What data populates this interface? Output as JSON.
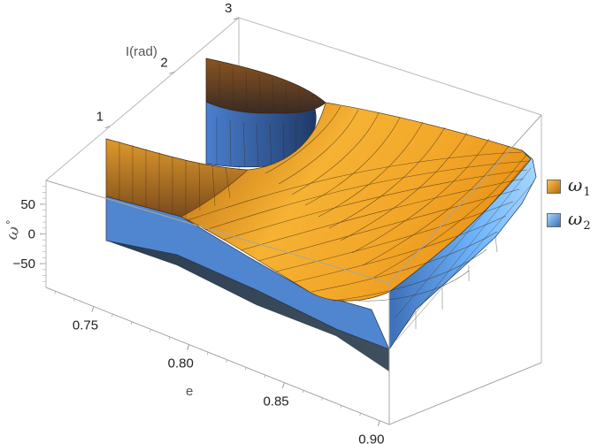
{
  "chart_data": {
    "type": "surface3d",
    "title": "",
    "axes": {
      "x": {
        "label": "e",
        "ticks": [
          "0.75",
          "0.80",
          "0.85",
          "0.90"
        ],
        "range": [
          0.725,
          0.905
        ]
      },
      "y": {
        "label": "I(rad)",
        "ticks": [
          "1",
          "2",
          "3"
        ],
        "range": [
          0,
          3
        ]
      },
      "z": {
        "label": "ω°",
        "ticks": [
          "50",
          "0",
          "−50"
        ],
        "range": [
          -90,
          90
        ]
      }
    },
    "series": [
      {
        "name": "ω₁",
        "base": "ω",
        "sub": "1",
        "color": "#f5a623",
        "surface": "upper (orange)"
      },
      {
        "name": "ω₂",
        "base": "ω",
        "sub": "2",
        "color": "#5aa7ef",
        "surface": "lower (blue)"
      }
    ],
    "legend_position": "right",
    "box": true
  }
}
